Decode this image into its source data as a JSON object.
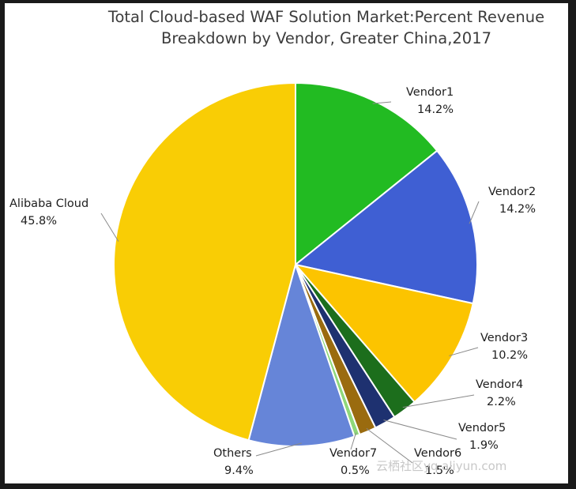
{
  "chart_data": {
    "type": "pie",
    "title_lines": [
      "Total Cloud-based WAF Solution Market:Percent Revenue",
      "Breakdown by Vendor, Greater China,2017"
    ],
    "slices": [
      {
        "name": "Vendor1",
        "value": 14.2,
        "label": "14.2%",
        "color": "#22bb22"
      },
      {
        "name": "Vendor2",
        "value": 14.2,
        "label": "14.2%",
        "color": "#3f5fd3"
      },
      {
        "name": "Vendor3",
        "value": 10.2,
        "label": "10.2%",
        "color": "#fcc400"
      },
      {
        "name": "Vendor4",
        "value": 2.2,
        "label": "2.2%",
        "color": "#1c6e1c"
      },
      {
        "name": "Vendor5",
        "value": 1.9,
        "label": "1.9%",
        "color": "#1e3170"
      },
      {
        "name": "Vendor6",
        "value": 1.5,
        "label": "1.5%",
        "color": "#9a6b0f"
      },
      {
        "name": "Vendor7",
        "value": 0.5,
        "label": "0.5%",
        "color": "#8fd87a"
      },
      {
        "name": "Others",
        "value": 9.4,
        "label": "9.4%",
        "color": "#6685d8"
      },
      {
        "name": "Alibaba Cloud",
        "value": 45.8,
        "label": "45.8%",
        "color": "#f9cd05"
      }
    ]
  },
  "watermark": "云栖社区yq.aliyun.com"
}
